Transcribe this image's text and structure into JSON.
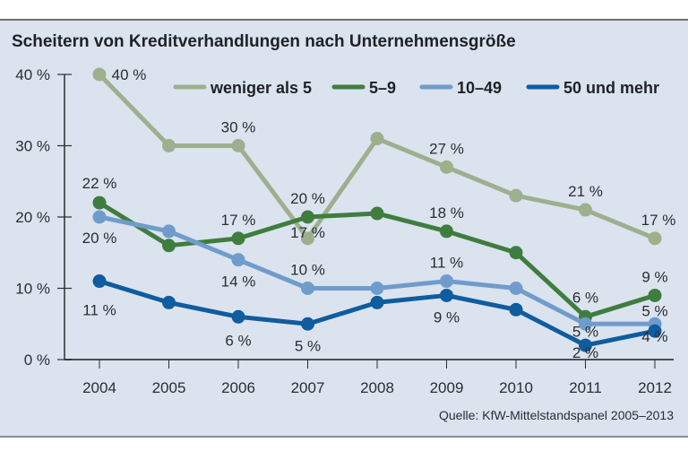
{
  "chart_data": {
    "type": "line",
    "title": "Scheitern von Kreditverhandlungen nach Unternehmensgröße",
    "xlabel": "",
    "ylabel": "",
    "x": [
      "2004",
      "2005",
      "2006",
      "2007",
      "2008",
      "2009",
      "2010",
      "2011",
      "2012"
    ],
    "ylim": [
      0,
      40
    ],
    "yticks": [
      0,
      10,
      20,
      30,
      40
    ],
    "ytick_labels": [
      "0 %",
      "10 %",
      "20 %",
      "30 %",
      "40 %"
    ],
    "grid": false,
    "legend_position": "top-right",
    "source": "Quelle: KfW-Mittelstandspanel 2005–2013",
    "series": [
      {
        "name": "weniger als 5",
        "color": "#9db08e",
        "values": [
          40,
          30,
          30,
          17,
          31,
          27,
          23,
          21,
          17
        ],
        "labels": [
          "40 %",
          null,
          "30 %",
          "17 %",
          null,
          "27 %",
          null,
          "21 %",
          "17 %"
        ]
      },
      {
        "name": "5–9",
        "color": "#3f7d3f",
        "values": [
          22,
          16,
          17,
          20,
          20.5,
          18,
          15,
          6,
          9
        ],
        "labels": [
          "22 %",
          null,
          "17 %",
          "20 %",
          null,
          "18 %",
          null,
          "6 %",
          "9 %"
        ]
      },
      {
        "name": "10–49",
        "color": "#6f9ccb",
        "values": [
          20,
          18,
          14,
          10,
          10,
          11,
          10,
          5,
          5
        ],
        "labels": [
          "20 %",
          null,
          "14 %",
          "10 %",
          null,
          "11 %",
          null,
          "5 %",
          "5 %"
        ]
      },
      {
        "name": "50 und mehr",
        "color": "#0f5c9e",
        "values": [
          11,
          8,
          6,
          5,
          8,
          9,
          7,
          2,
          4
        ],
        "labels": [
          "11 %",
          null,
          "6 %",
          "5 %",
          null,
          "9 %",
          null,
          "2 %",
          "4 %"
        ]
      }
    ]
  }
}
